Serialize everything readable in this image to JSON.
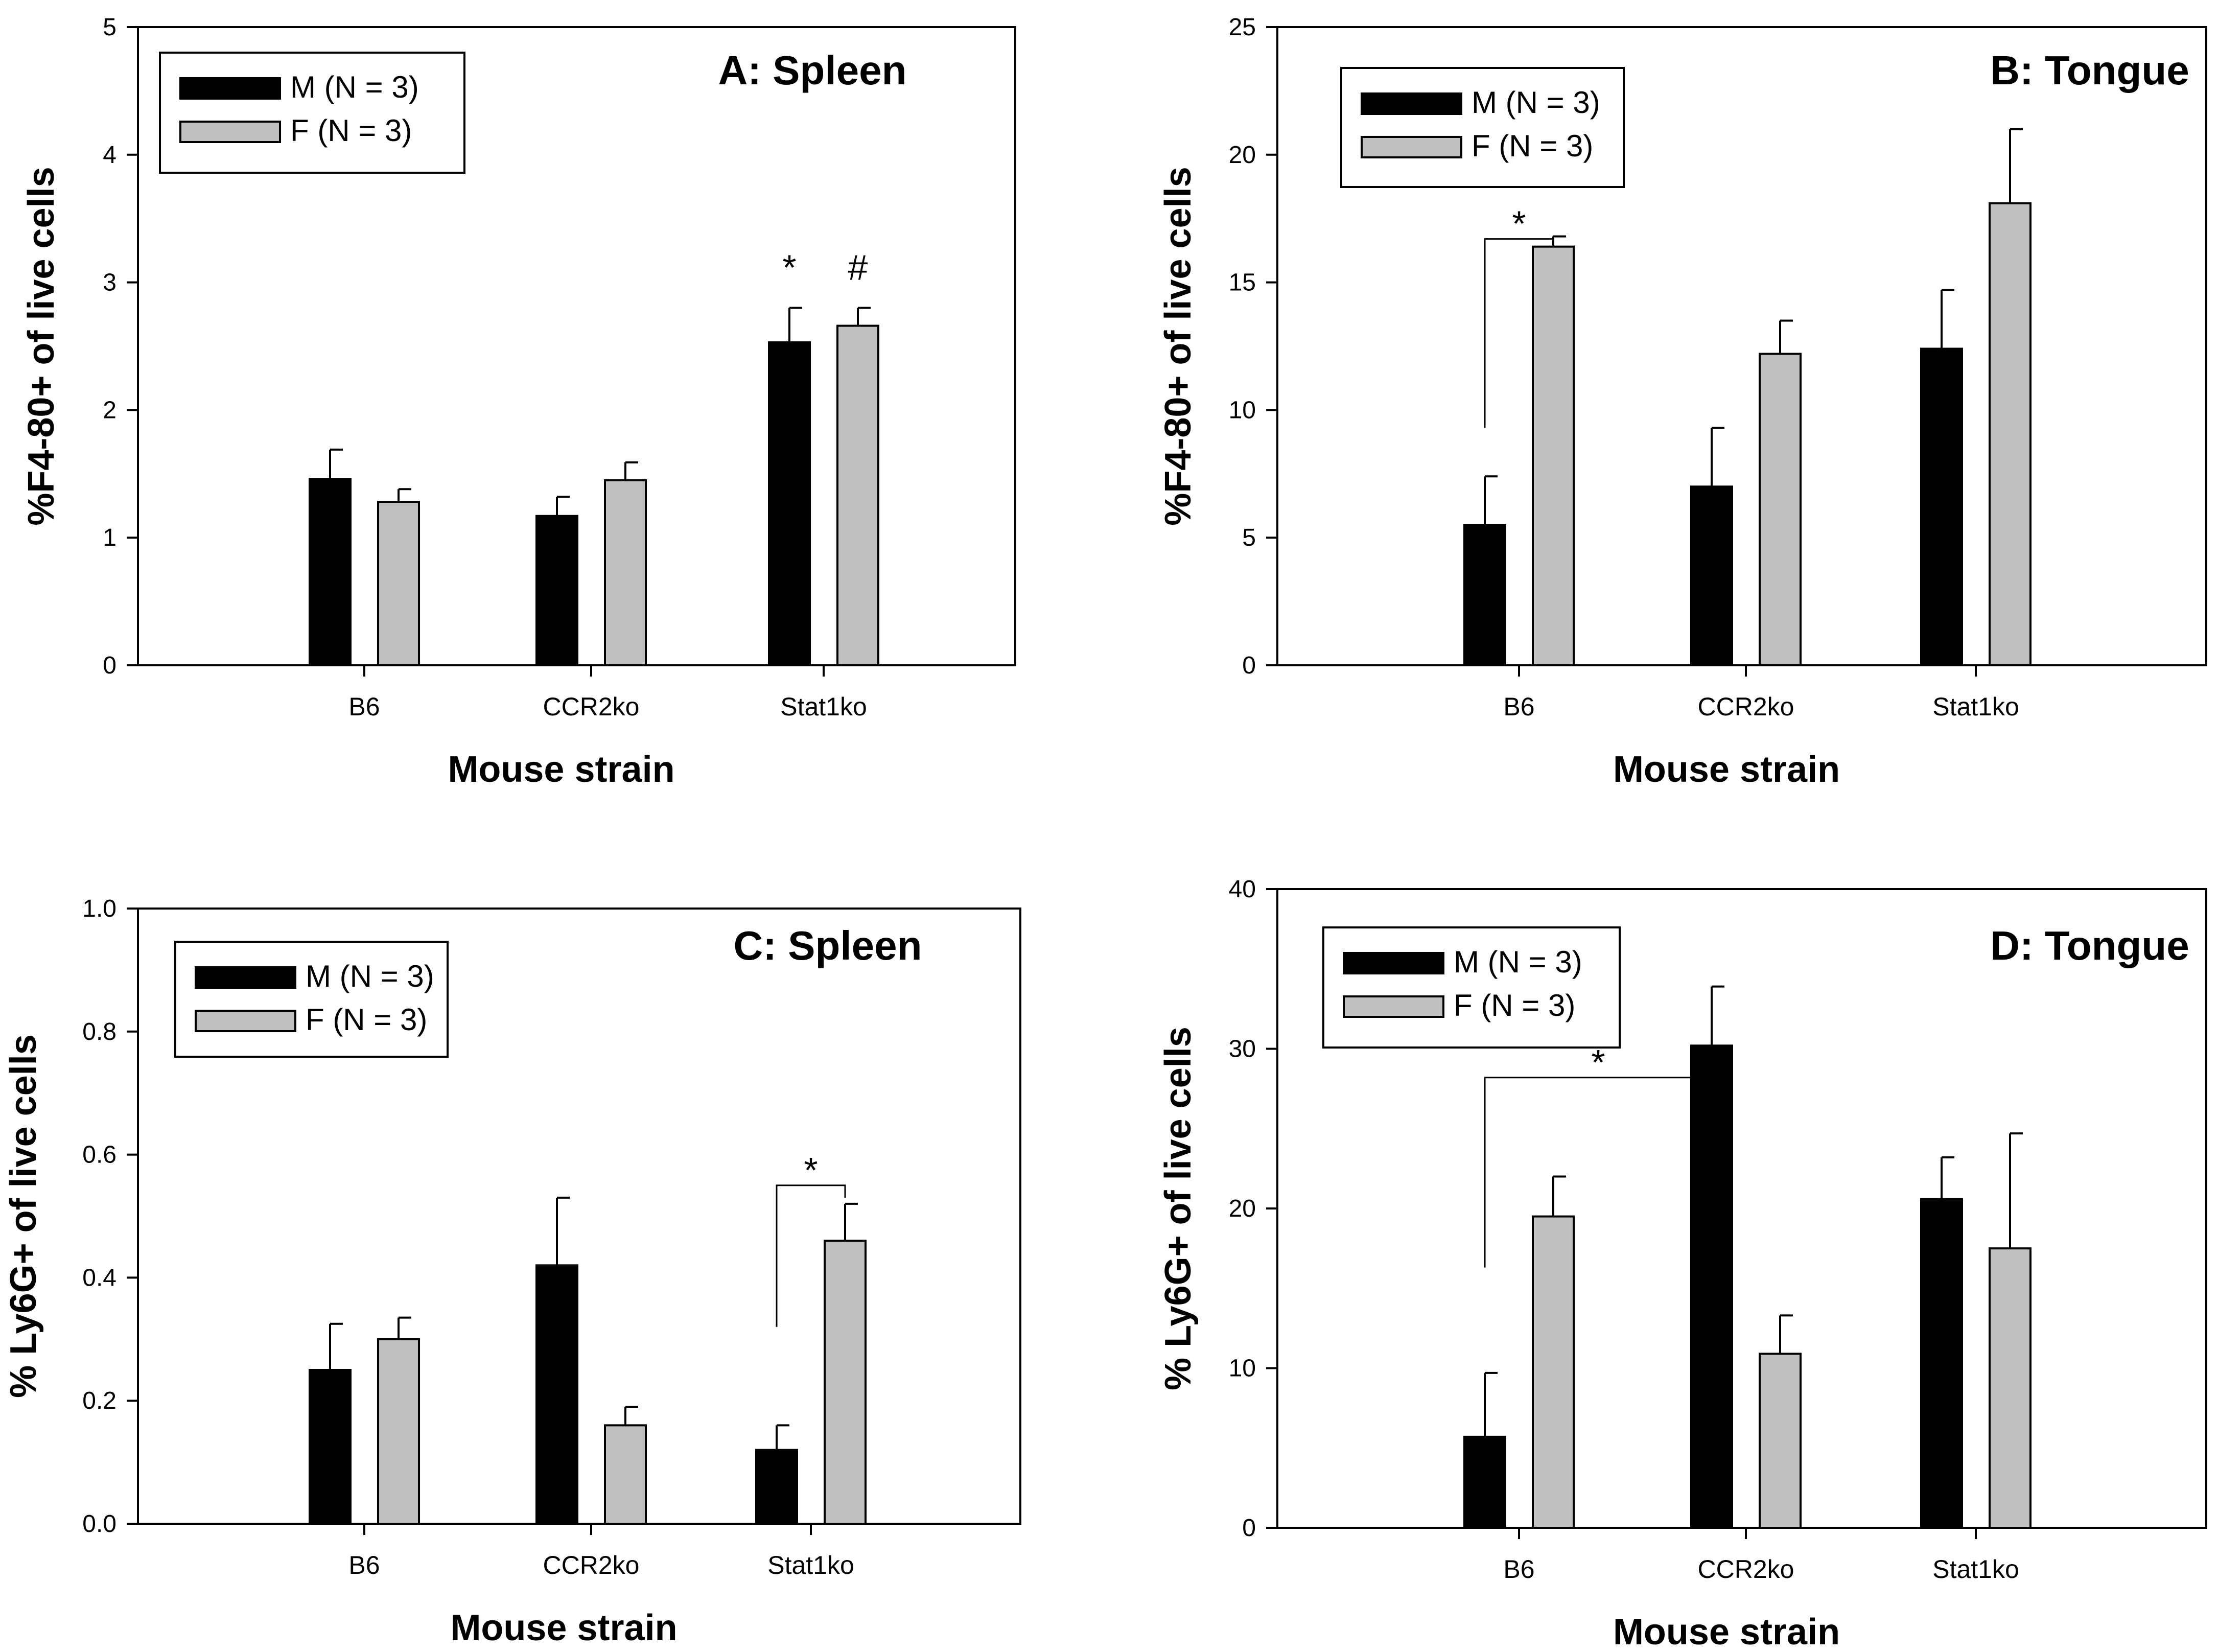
{
  "chart_data": [
    {
      "type": "bar",
      "title": "A: Spleen",
      "xlabel": "Mouse strain",
      "ylabel": "%F4-80+ of live cells",
      "categories": [
        "B6",
        "CCR2ko",
        "Stat1ko"
      ],
      "ylim": [
        0,
        5
      ],
      "yticks": [
        0,
        1,
        2,
        3,
        4,
        5
      ],
      "tick_decimals": 0,
      "series": [
        {
          "name": "M (N = 3)",
          "color": "#000000",
          "values": [
            1.46,
            1.17,
            2.53
          ],
          "errors": [
            0.23,
            0.15,
            0.27
          ]
        },
        {
          "name": "F (N = 3)",
          "color": "#c0c0c0",
          "values": [
            1.28,
            1.45,
            2.66
          ],
          "errors": [
            0.1,
            0.14,
            0.14
          ]
        }
      ],
      "annotations": [
        {
          "text": "*",
          "category": 2,
          "series": 0
        },
        {
          "text": "#",
          "category": 2,
          "series": 1
        }
      ],
      "brackets": [],
      "legend_position": "top-left"
    },
    {
      "type": "bar",
      "title": "B: Tongue",
      "xlabel": "Mouse strain",
      "ylabel": "%F4-80+ of live cells",
      "categories": [
        "B6",
        "CCR2ko",
        "Stat1ko"
      ],
      "ylim": [
        0,
        25
      ],
      "yticks": [
        0,
        5,
        10,
        15,
        20,
        25
      ],
      "tick_decimals": 0,
      "series": [
        {
          "name": "M (N = 3)",
          "color": "#000000",
          "values": [
            5.5,
            7.0,
            12.4
          ],
          "errors": [
            1.9,
            2.3,
            2.3
          ]
        },
        {
          "name": "F (N = 3)",
          "color": "#c0c0c0",
          "values": [
            16.4,
            12.2,
            18.1
          ],
          "errors": [
            0.4,
            1.3,
            2.9
          ]
        }
      ],
      "annotations": [],
      "brackets": [
        {
          "text": "*",
          "from_category": 0,
          "from_series": 0,
          "to_category": 0,
          "to_series": 1,
          "level": 16.7,
          "left_drop": 9.3,
          "right_drop": 16.7
        }
      ],
      "legend_position": "top-left"
    },
    {
      "type": "bar",
      "title": "C: Spleen",
      "xlabel": "Mouse strain",
      "ylabel": "% Ly6G+ of live cells",
      "categories": [
        "B6",
        "CCR2ko",
        "Stat1ko"
      ],
      "ylim": [
        0,
        1.0
      ],
      "yticks": [
        0,
        0.2,
        0.4,
        0.6,
        0.8,
        1.0
      ],
      "tick_decimals": 1,
      "series": [
        {
          "name": "M (N = 3)",
          "color": "#000000",
          "values": [
            0.25,
            0.42,
            0.12
          ],
          "errors": [
            0.075,
            0.11,
            0.04
          ]
        },
        {
          "name": "F (N = 3)",
          "color": "#c0c0c0",
          "values": [
            0.3,
            0.16,
            0.46
          ],
          "errors": [
            0.035,
            0.03,
            0.06
          ]
        }
      ],
      "annotations": [],
      "brackets": [
        {
          "text": "*",
          "from_category": 2,
          "from_series": 0,
          "to_category": 2,
          "to_series": 1,
          "level": 0.55,
          "left_drop": 0.32,
          "right_drop": 0.53
        }
      ],
      "legend_position": "top-left"
    },
    {
      "type": "bar",
      "title": "D: Tongue",
      "xlabel": "Mouse strain",
      "ylabel": "% Ly6G+ of live cells",
      "categories": [
        "B6",
        "CCR2ko",
        "Stat1ko"
      ],
      "ylim": [
        0,
        40
      ],
      "yticks": [
        0,
        10,
        20,
        30,
        40
      ],
      "tick_decimals": 0,
      "series": [
        {
          "name": "M (N = 3)",
          "color": "#000000",
          "values": [
            5.7,
            30.2,
            20.6
          ],
          "errors": [
            4.0,
            3.7,
            2.6
          ]
        },
        {
          "name": "F (N = 3)",
          "color": "#c0c0c0",
          "values": [
            19.5,
            10.9,
            17.5
          ],
          "errors": [
            2.5,
            2.4,
            7.2
          ]
        }
      ],
      "annotations": [],
      "brackets": [
        {
          "text": "*",
          "from_category": 0,
          "from_series": 0,
          "to_category": 1,
          "to_series": 0,
          "level": 28.2,
          "left_drop": 16.3,
          "right_drop": 28.2
        }
      ],
      "legend_position": "top-left"
    }
  ]
}
